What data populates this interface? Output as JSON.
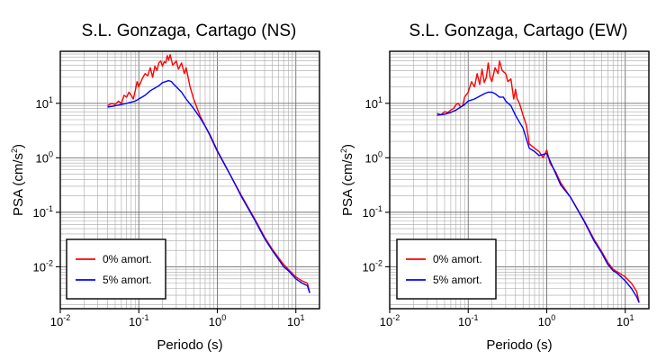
{
  "chart_data": [
    {
      "type": "line",
      "title": "S.L. Gonzaga, Cartago (NS)",
      "xlabel": "Periodo (s)",
      "ylabel_main": "PSA (cm/s",
      "ylabel_sup": "2",
      "ylabel_tail": ")",
      "xscale": "log",
      "yscale": "log",
      "xlim": [
        0.01,
        20
      ],
      "ylim": [
        0.0017,
        90
      ],
      "x_ticks": [
        {
          "base": "10",
          "exp": "-2"
        },
        {
          "base": "10",
          "exp": "-1"
        },
        {
          "base": "10",
          "exp": "0"
        },
        {
          "base": "10",
          "exp": "1"
        }
      ],
      "y_ticks": [
        {
          "base": "10",
          "exp": "-2"
        },
        {
          "base": "10",
          "exp": "-1"
        },
        {
          "base": "10",
          "exp": "0"
        },
        {
          "base": "10",
          "exp": "1"
        }
      ],
      "grid": true,
      "legend_position": "bottom-left",
      "series": [
        {
          "name": "0% amort.",
          "color": "#ff0000",
          "x": [
            0.04,
            0.045,
            0.05,
            0.055,
            0.06,
            0.065,
            0.07,
            0.075,
            0.08,
            0.085,
            0.09,
            0.095,
            0.1,
            0.11,
            0.12,
            0.13,
            0.14,
            0.15,
            0.16,
            0.17,
            0.18,
            0.19,
            0.2,
            0.21,
            0.22,
            0.23,
            0.24,
            0.25,
            0.27,
            0.3,
            0.32,
            0.35,
            0.38,
            0.4,
            0.45,
            0.5,
            0.6,
            0.7,
            0.8,
            1.0,
            1.5,
            2.0,
            3.0,
            4.0,
            5.0,
            7.0,
            8.0,
            10.0,
            12.0,
            14.0,
            15.0
          ],
          "y": [
            9,
            10,
            9.5,
            11,
            10,
            14,
            13,
            16,
            14,
            12,
            17,
            25,
            20,
            28,
            35,
            32,
            45,
            30,
            48,
            40,
            55,
            60,
            48,
            58,
            55,
            75,
            62,
            78,
            50,
            60,
            42,
            55,
            35,
            45,
            20,
            12,
            6,
            3.8,
            2.6,
            1.3,
            0.45,
            0.21,
            0.075,
            0.035,
            0.021,
            0.011,
            0.009,
            0.0065,
            0.0055,
            0.005,
            0.0034
          ]
        },
        {
          "name": "5% amort.",
          "color": "#0000ff",
          "x": [
            0.04,
            0.05,
            0.06,
            0.07,
            0.08,
            0.09,
            0.1,
            0.12,
            0.14,
            0.16,
            0.18,
            0.2,
            0.22,
            0.24,
            0.26,
            0.28,
            0.3,
            0.35,
            0.4,
            0.5,
            0.6,
            0.7,
            0.8,
            1.0,
            1.5,
            2.0,
            3.0,
            4.0,
            5.0,
            7.0,
            8.0,
            10.0,
            12.0,
            14.0,
            15.0
          ],
          "y": [
            8.5,
            9,
            9.5,
            10,
            10.5,
            11,
            12,
            14,
            17,
            19,
            21,
            24,
            25,
            26,
            25,
            22,
            20,
            16,
            12,
            8,
            5.5,
            3.8,
            2.7,
            1.35,
            0.45,
            0.2,
            0.072,
            0.033,
            0.02,
            0.01,
            0.0085,
            0.006,
            0.005,
            0.0045,
            0.0033
          ]
        }
      ]
    },
    {
      "type": "line",
      "title": "S.L. Gonzaga, Cartago (EW)",
      "xlabel": "Periodo (s)",
      "ylabel_main": "PSA (cm/s",
      "ylabel_sup": "2",
      "ylabel_tail": ")",
      "xscale": "log",
      "yscale": "log",
      "xlim": [
        0.01,
        20
      ],
      "ylim": [
        0.0017,
        90
      ],
      "x_ticks": [
        {
          "base": "10",
          "exp": "-2"
        },
        {
          "base": "10",
          "exp": "-1"
        },
        {
          "base": "10",
          "exp": "0"
        },
        {
          "base": "10",
          "exp": "1"
        }
      ],
      "y_ticks": [
        {
          "base": "10",
          "exp": "-2"
        },
        {
          "base": "10",
          "exp": "-1"
        },
        {
          "base": "10",
          "exp": "0"
        },
        {
          "base": "10",
          "exp": "1"
        }
      ],
      "grid": true,
      "legend_position": "bottom-left",
      "series": [
        {
          "name": "0% amort.",
          "color": "#ff0000",
          "x": [
            0.04,
            0.045,
            0.05,
            0.055,
            0.06,
            0.065,
            0.07,
            0.075,
            0.08,
            0.085,
            0.09,
            0.1,
            0.11,
            0.12,
            0.13,
            0.14,
            0.15,
            0.16,
            0.17,
            0.18,
            0.19,
            0.2,
            0.22,
            0.24,
            0.25,
            0.27,
            0.3,
            0.32,
            0.35,
            0.38,
            0.4,
            0.42,
            0.45,
            0.5,
            0.55,
            0.6,
            0.7,
            0.8,
            0.9,
            1.0,
            1.1,
            1.3,
            1.5,
            2.0,
            3.0,
            4.0,
            5.0,
            6.0,
            7.0,
            8.0,
            10.0,
            12.0,
            14.0,
            15.0
          ],
          "y": [
            6.5,
            6.2,
            7,
            6.8,
            7.5,
            8,
            9.5,
            10,
            8.5,
            9,
            13,
            16,
            25,
            20,
            35,
            22,
            42,
            24,
            30,
            55,
            30,
            25,
            45,
            35,
            60,
            40,
            35,
            25,
            28,
            12,
            18,
            12,
            10,
            6,
            4,
            1.8,
            1.5,
            1.3,
            1.0,
            1.4,
            0.8,
            0.55,
            0.35,
            0.19,
            0.07,
            0.032,
            0.019,
            0.012,
            0.009,
            0.008,
            0.0065,
            0.005,
            0.0035,
            0.0022
          ]
        },
        {
          "name": "5% amort.",
          "color": "#0000ff",
          "x": [
            0.04,
            0.05,
            0.06,
            0.07,
            0.08,
            0.09,
            0.1,
            0.12,
            0.14,
            0.16,
            0.18,
            0.2,
            0.22,
            0.25,
            0.28,
            0.3,
            0.35,
            0.4,
            0.45,
            0.5,
            0.6,
            0.7,
            0.8,
            1.0,
            1.5,
            2.0,
            3.0,
            4.0,
            5.0,
            6.0,
            7.0,
            8.0,
            10.0,
            12.0,
            14.0,
            15.0
          ],
          "y": [
            6,
            6.3,
            6.8,
            7.5,
            8.5,
            9.5,
            11,
            12,
            13.5,
            15,
            16,
            16,
            15,
            13,
            13,
            11,
            9,
            6,
            4.5,
            3.5,
            1.5,
            1.3,
            1.1,
            1.2,
            0.32,
            0.19,
            0.068,
            0.03,
            0.018,
            0.011,
            0.0085,
            0.0075,
            0.0055,
            0.004,
            0.0028,
            0.0022
          ]
        }
      ]
    }
  ]
}
